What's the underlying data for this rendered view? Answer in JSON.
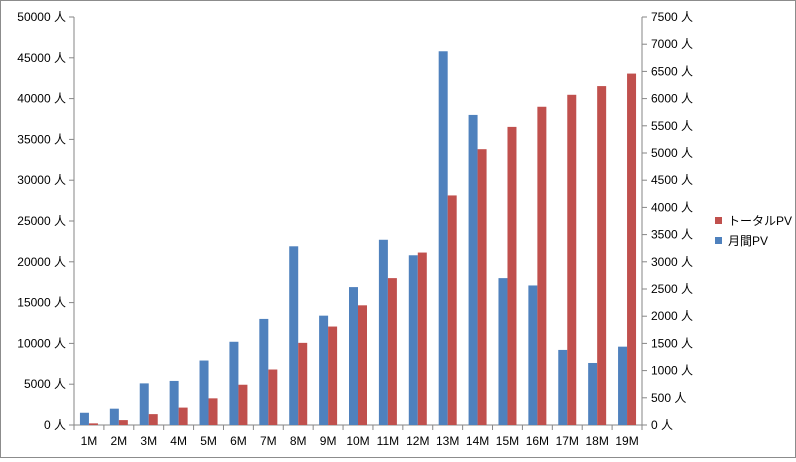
{
  "chart_data": {
    "type": "bar",
    "categories": [
      "1M",
      "2M",
      "3M",
      "4M",
      "5M",
      "6M",
      "7M",
      "8M",
      "9M",
      "10M",
      "11M",
      "12M",
      "13M",
      "14M",
      "15M",
      "16M",
      "17M",
      "18M",
      "19M"
    ],
    "series": [
      {
        "name": "月間PV",
        "axis": "left",
        "color": "#4f81bd",
        "values": [
          1500,
          2000,
          5100,
          5400,
          7900,
          10200,
          13000,
          21900,
          13400,
          16900,
          22700,
          20800,
          45800,
          38000,
          18000,
          17100,
          9200,
          7600,
          9600
        ]
      },
      {
        "name": "トータルPV",
        "axis": "right",
        "color": "#c0504d",
        "values": [
          30,
          90,
          200,
          320,
          490,
          740,
          1020,
          1510,
          1810,
          2200,
          2700,
          3170,
          4220,
          5070,
          5480,
          5850,
          6070,
          6230,
          6460
        ]
      }
    ],
    "y_left": {
      "min": 0,
      "max": 50000,
      "step": 5000,
      "unit": "人"
    },
    "y_right": {
      "min": 0,
      "max": 7500,
      "step": 500,
      "unit": "人"
    },
    "legend_position": "right",
    "legend": [
      "トータルPV",
      "月間PV"
    ],
    "grid": false
  }
}
